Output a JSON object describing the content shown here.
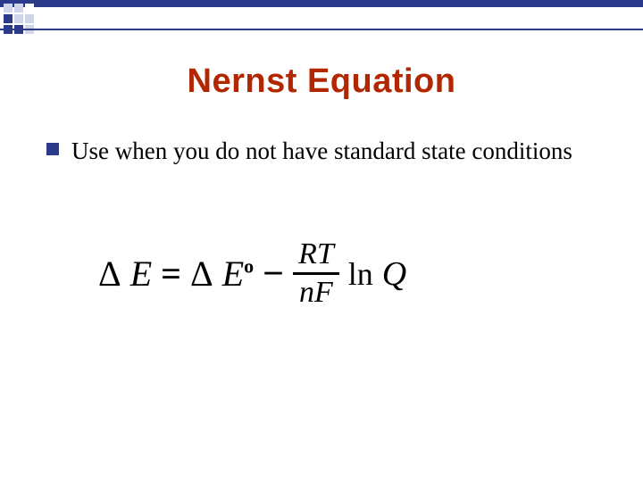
{
  "theme": {
    "navy": "#2c3a8c",
    "title_color": "#b22600",
    "corner_pattern_colors": [
      "#d0d6ea",
      "#d0d6ea",
      "#ffffff",
      "#2c3a8c",
      "#d0d6ea",
      "#d0d6ea",
      "#2c3a8c",
      "#2c3a8c",
      "#d0d6ea"
    ]
  },
  "title": "Nernst Equation",
  "bullet": {
    "marker_color": "#2c3a8c",
    "text": "Use when you do not have standard state conditions"
  },
  "equation": {
    "delta1": "Δ",
    "E1": "E",
    "eq_sign": "=",
    "delta2": "Δ",
    "E2": "E",
    "superO": "o",
    "minus": "−",
    "frac_num": "RT",
    "frac_den_n": "n",
    "frac_den_F": "F",
    "ln": "ln",
    "Q": "Q"
  }
}
